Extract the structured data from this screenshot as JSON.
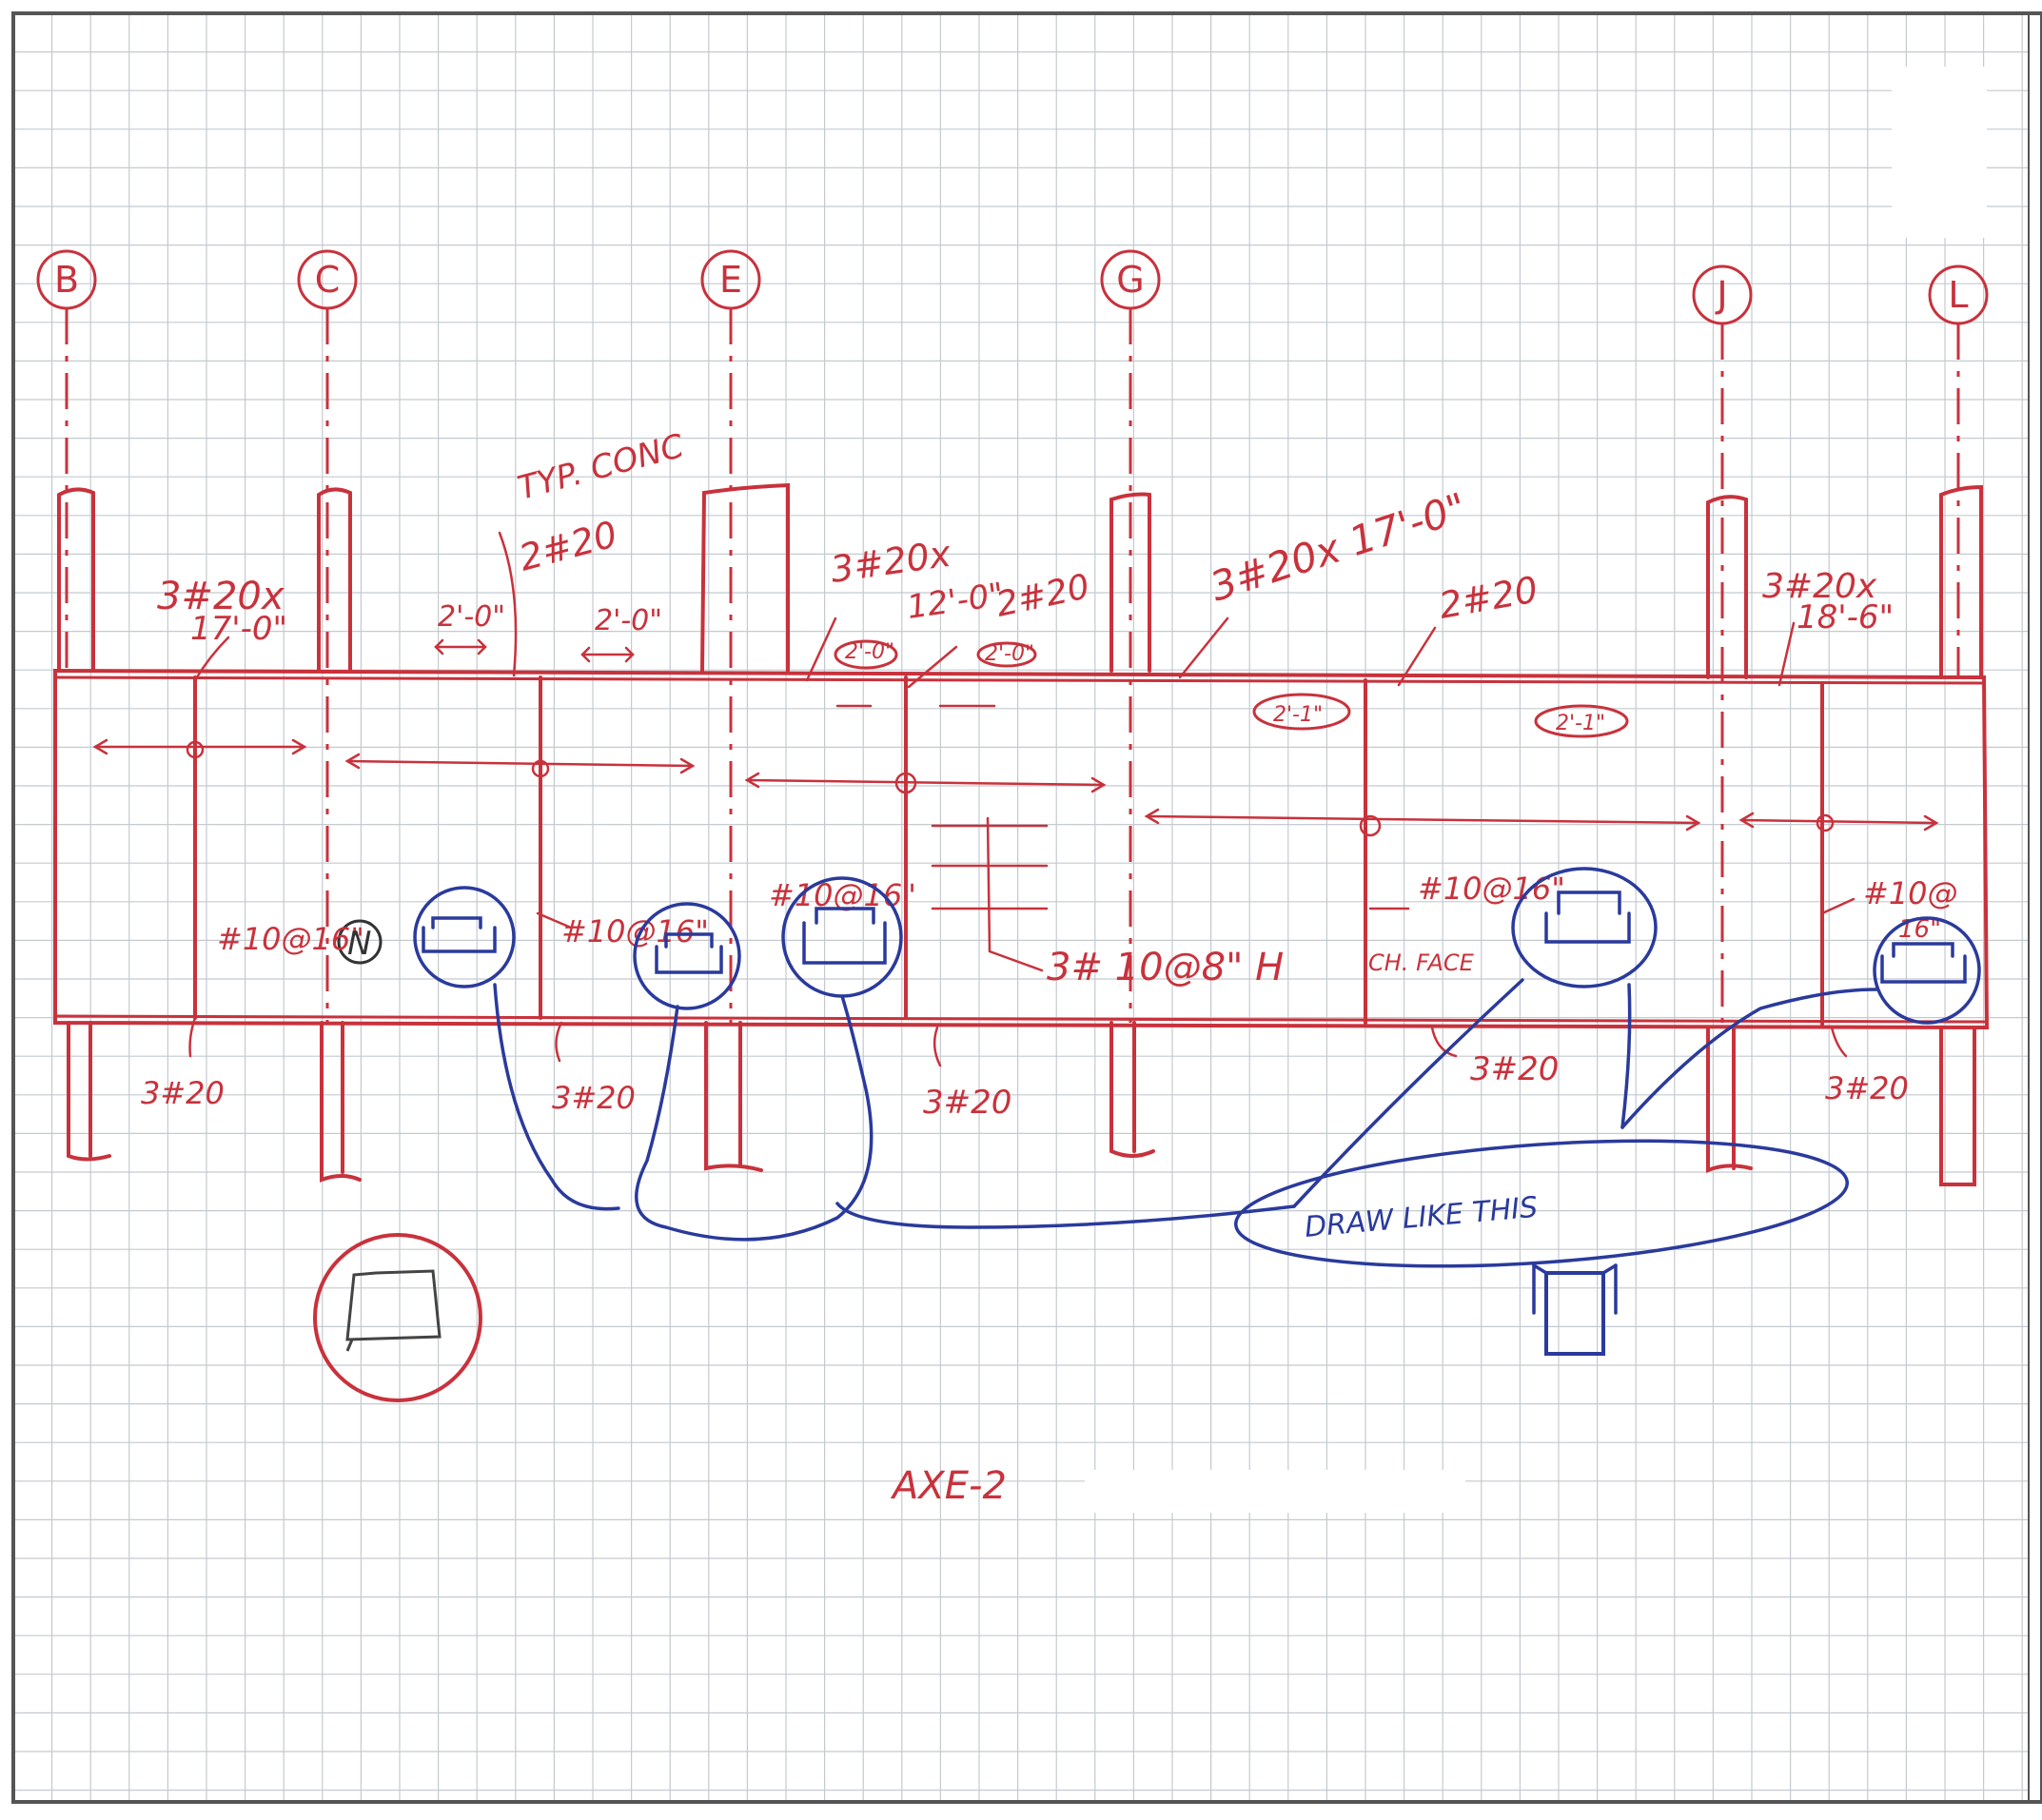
{
  "colors": {
    "grid": "#c4cad0",
    "red": "#c8323c",
    "blue": "#2a3a9c",
    "border": "#555555"
  },
  "grid_lines": {
    "B": "B",
    "C": "C",
    "E": "E",
    "G": "G",
    "J": "J",
    "L": "L"
  },
  "labels": {
    "tyrique_2h20": "TYP. CONC",
    "note_2h20_top": "2#20",
    "beam1_line1": "3#20x",
    "beam1_line2": "17'-0\"",
    "dim_2_0_a": "2'-0\"",
    "dim_2_0_b": "2'-0\"",
    "beam3_line1": "3#20x",
    "beam3_line2": "12'-0\"",
    "note_2h20_mid": "2#20",
    "dim_2_0_c": "2'-0\"",
    "dim_2_0_d": "2'-0\"",
    "beam4": "3#20x 17'-0\"",
    "note_2h20_right": "2#20",
    "dim_2_1_a": "2'-1\"",
    "dim_2_1_b": "2'-1\"",
    "beam6_line1": "3#20x",
    "beam6_line2": "18'-6\"",
    "stirrup_1": "#10@16\"",
    "stirrup_2": "#10@16\"",
    "stirrup_3": "#10@16\"",
    "stirrup_4": "#10@16\"",
    "stirrup_5_line1": "#10@",
    "stirrup_5_line2": "16\"",
    "horiz_bars": "3# 10@8\" H",
    "ch_face": "CH. FACE",
    "bottom_1": "3#20",
    "bottom_2": "3#20",
    "bottom_3": "3#20",
    "bottom_4": "3#20",
    "bottom_5": "3#20",
    "section_label": "N",
    "draw_like_this": "DRAW LIKE THIS",
    "drawing_title": "AXE-2"
  }
}
